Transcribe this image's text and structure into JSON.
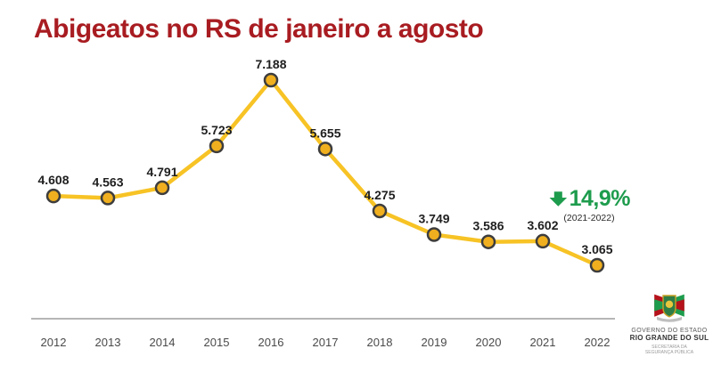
{
  "title": "Abigeatos no RS de janeiro a agosto",
  "chart_data": {
    "type": "line",
    "title": "Abigeatos no RS de janeiro a agosto",
    "categories": [
      "2012",
      "2013",
      "2014",
      "2015",
      "2016",
      "2017",
      "2018",
      "2019",
      "2020",
      "2021",
      "2022"
    ],
    "values": [
      4608,
      4563,
      4791,
      5723,
      7188,
      5655,
      4275,
      3749,
      3586,
      3602,
      3065
    ],
    "point_labels": [
      "4.608",
      "4.563",
      "4.791",
      "5.723",
      "7.188",
      "5.655",
      "4.275",
      "3.749",
      "3.586",
      "3.602",
      "3.065"
    ],
    "series_name": "Abigeatos",
    "xlabel": "",
    "ylabel": "",
    "ylim": [
      3065,
      7188
    ],
    "grid": false,
    "legend": "none",
    "line_color": "#F7C325",
    "marker_fill": "#F0AF1E",
    "marker_stroke": "#3D3D3D",
    "axis_color": "#9E9E9E"
  },
  "annotation": {
    "arrow_icon": "down-arrow",
    "percent": "14,9%",
    "period": "(2021-2022)",
    "color": "#1E9C4D"
  },
  "logo": {
    "coat_of_arms_icon": "rs-coat-of-arms",
    "line1": "GOVERNO DO ESTADO",
    "line2": "RIO GRANDE DO SUL",
    "line3": "SECRETARIA DA",
    "line4": "SEGURANÇA PÚBLICA"
  },
  "colors": {
    "title": "#A81C21",
    "accent_green": "#1E9C4D",
    "line_yellow": "#F7C325",
    "background": "#FFFFFF"
  }
}
